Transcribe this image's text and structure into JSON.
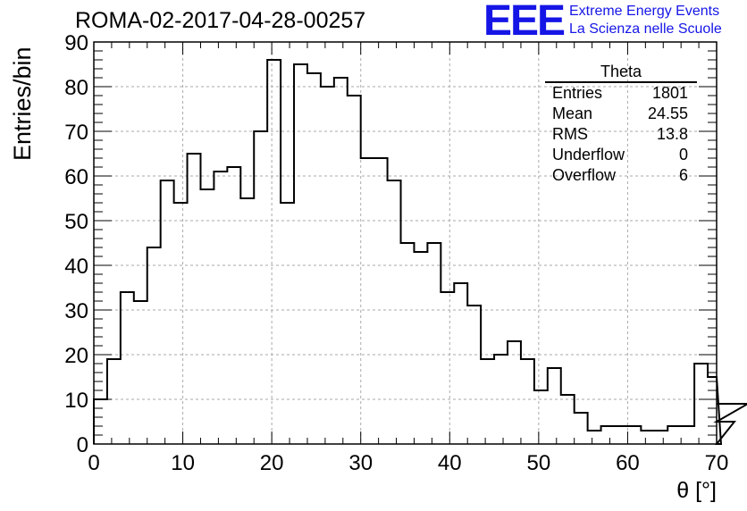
{
  "header": {
    "title": "ROMA-02-2017-04-28-00257",
    "logo_text": "EEE",
    "logo_line1": "Extreme Energy Events",
    "logo_line2": "La Scienza nelle Scuole"
  },
  "stats": {
    "name": "Theta",
    "rows": [
      {
        "label": "Entries",
        "value": "1801"
      },
      {
        "label": "Mean",
        "value": "24.55"
      },
      {
        "label": "RMS",
        "value": "13.8"
      },
      {
        "label": "Underflow",
        "value": "0"
      },
      {
        "label": "Overflow",
        "value": "6"
      }
    ]
  },
  "colors": {
    "logo": "#1515e6",
    "grid": "#aaaaaa",
    "line": "#000000"
  },
  "chart_data": {
    "type": "histogram",
    "title": "ROMA-02-2017-04-28-00257",
    "xlabel": "θ [°]",
    "ylabel": "Entries/bin",
    "xlim": [
      0,
      70
    ],
    "ylim": [
      0,
      90
    ],
    "x_ticks": [
      0,
      10,
      20,
      30,
      40,
      50,
      60,
      70
    ],
    "y_ticks": [
      0,
      10,
      20,
      30,
      40,
      50,
      60,
      70,
      80,
      90
    ],
    "grid": true,
    "bin_width": 1.5,
    "bin_start": 0,
    "values": [
      10,
      19,
      34,
      32,
      44,
      59,
      54,
      65,
      57,
      61,
      62,
      55,
      70,
      86,
      54,
      85,
      83,
      80,
      82,
      78,
      64,
      64,
      59,
      45,
      43,
      45,
      34,
      36,
      31,
      19,
      20,
      23,
      19,
      12,
      17,
      11,
      7,
      3,
      4,
      4,
      4,
      3,
      3,
      4,
      4,
      18,
      15,
      0,
      5,
      9
    ]
  }
}
